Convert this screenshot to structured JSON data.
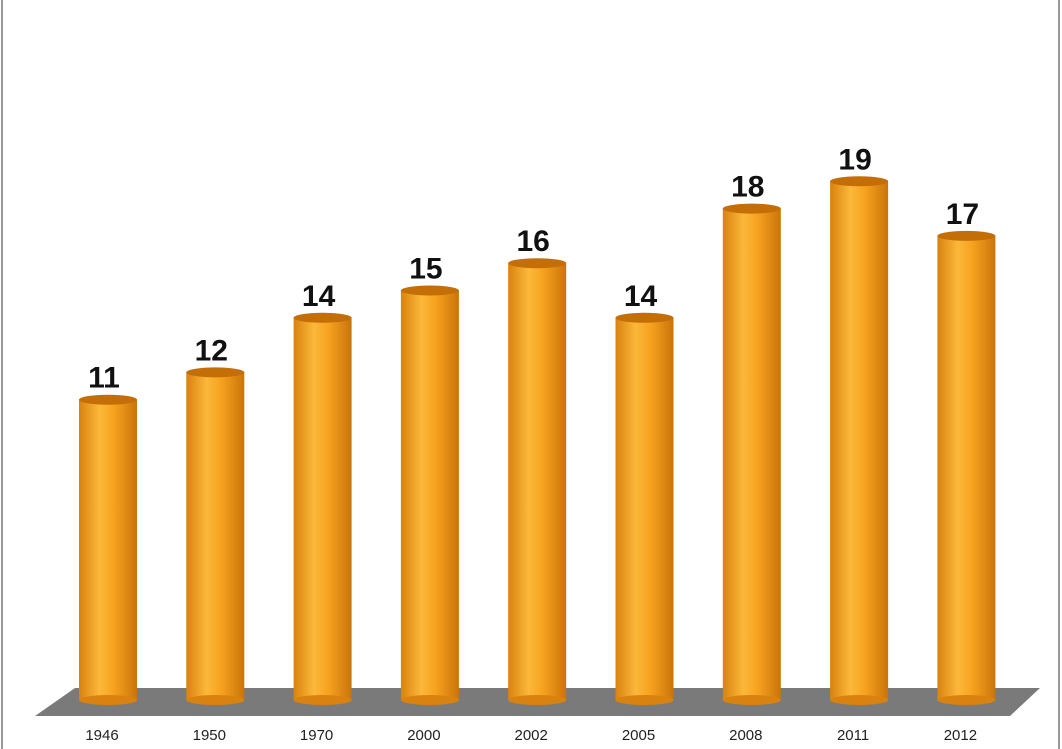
{
  "chart_data": {
    "type": "bar",
    "categories": [
      "1946",
      "1950",
      "1970",
      "2000",
      "2002",
      "2005",
      "2008",
      "2011",
      "2012"
    ],
    "values": [
      11,
      12,
      14,
      15,
      16,
      14,
      18,
      19,
      17
    ],
    "color": "#f5a21f"
  }
}
